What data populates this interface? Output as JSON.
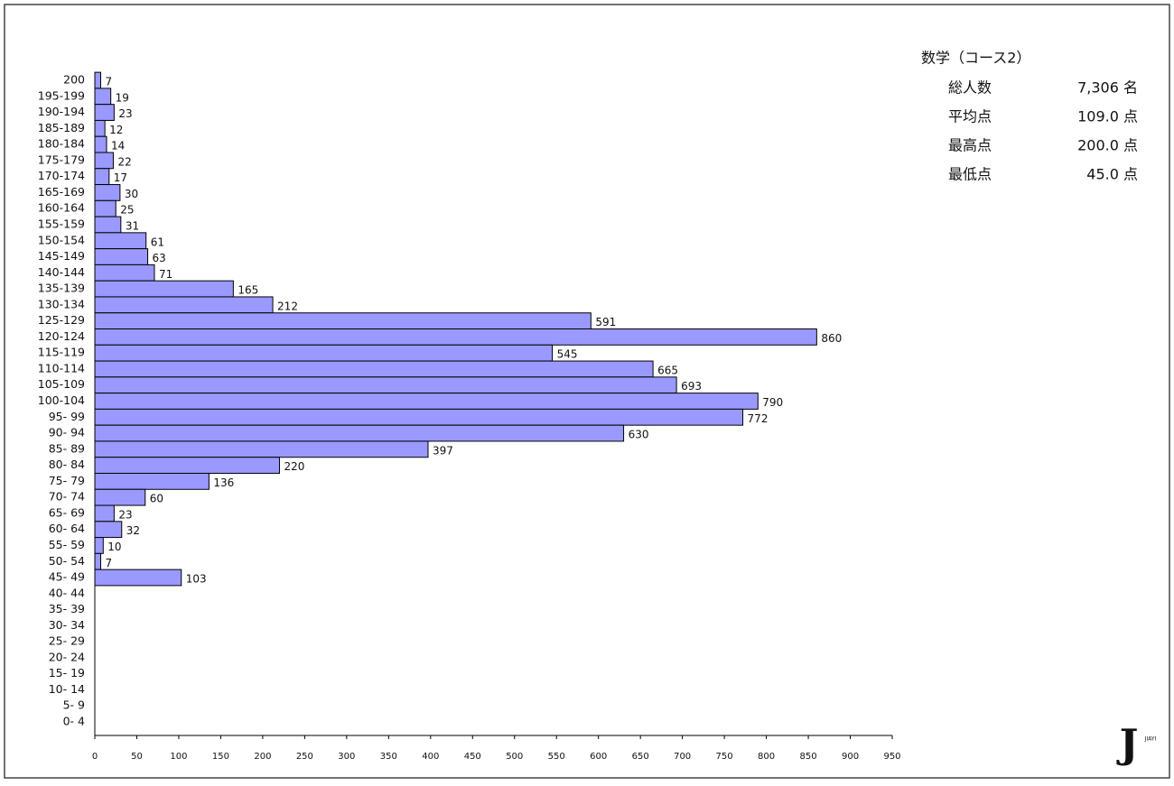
{
  "chart_data": {
    "type": "barh",
    "categories": [
      "200",
      "195-199",
      "190-194",
      "185-189",
      "180-184",
      "175-179",
      "170-174",
      "165-169",
      "160-164",
      "155-159",
      "150-154",
      "145-149",
      "140-144",
      "135-139",
      "130-134",
      "125-129",
      "120-124",
      "115-119",
      "110-114",
      "105-109",
      "100-104",
      "95- 99",
      "90- 94",
      "85- 89",
      "80- 84",
      "75- 79",
      "70- 74",
      "65- 69",
      "60- 64",
      "55- 59",
      "50- 54",
      "45- 49",
      "40- 44",
      "35- 39",
      "30- 34",
      "25- 29",
      "20- 24",
      "15- 19",
      "10- 14",
      "5- 9",
      "0- 4"
    ],
    "values": [
      7,
      19,
      23,
      12,
      14,
      22,
      17,
      30,
      25,
      31,
      61,
      63,
      71,
      165,
      212,
      591,
      860,
      545,
      665,
      693,
      790,
      772,
      630,
      397,
      220,
      136,
      60,
      23,
      32,
      10,
      7,
      103,
      null,
      null,
      null,
      null,
      null,
      null,
      null,
      null,
      null
    ],
    "color": "#9999ff",
    "xlim": [
      0,
      950
    ],
    "xticks": [
      0,
      50,
      100,
      150,
      200,
      250,
      300,
      350,
      400,
      450,
      500,
      550,
      600,
      650,
      700,
      750,
      800,
      850,
      900,
      950
    ]
  },
  "stats": {
    "title": "数学（コース2）",
    "rows": [
      [
        "総人数",
        "7,306 名"
      ],
      [
        "平均点",
        "109.0 点"
      ],
      [
        "最高点",
        "200.0 点"
      ],
      [
        "最低点",
        "45.0 点"
      ]
    ]
  },
  "logo": {
    "mark": "J",
    "text": "JIAYI"
  }
}
